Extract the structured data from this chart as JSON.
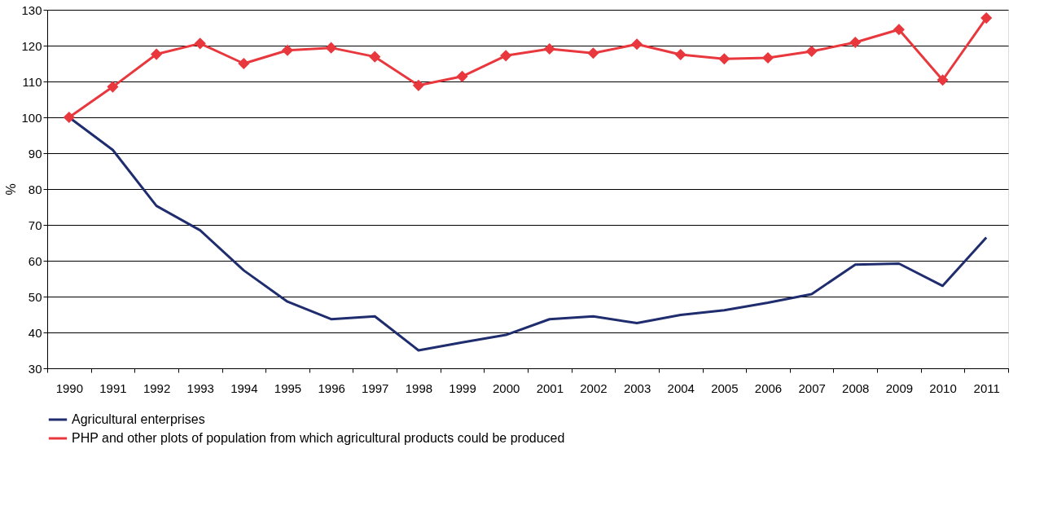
{
  "chart_data": {
    "type": "line",
    "ylabel": "%",
    "categories": [
      "1990",
      "1991",
      "1992",
      "1993",
      "1994",
      "1995",
      "1996",
      "1997",
      "1998",
      "1999",
      "2000",
      "2001",
      "2002",
      "2003",
      "2004",
      "2005",
      "2006",
      "2007",
      "2008",
      "2009",
      "2010",
      "2011"
    ],
    "series": [
      {
        "name": "Agricultural enterprises",
        "color": "#1f2d6e",
        "marker": "none",
        "values": [
          100,
          90.9,
          75.3,
          68.5,
          57.3,
          48.6,
          43.7,
          44.5,
          35.0,
          37.2,
          39.3,
          43.7,
          44.5,
          42.6,
          44.9,
          46.2,
          48.3,
          50.7,
          58.9,
          59.2,
          53.0,
          66.5
        ]
      },
      {
        "name": "PHP and other plots of population from which agricultural products could be produced",
        "color": "#e8383d",
        "marker": "diamond",
        "values": [
          100,
          108.5,
          117.6,
          120.6,
          115.0,
          118.7,
          119.4,
          116.9,
          108.9,
          111.4,
          117.2,
          119.1,
          117.9,
          120.4,
          117.5,
          116.3,
          116.6,
          118.4,
          120.9,
          124.5,
          110.4,
          127.7
        ]
      }
    ],
    "ylim": [
      30,
      130
    ],
    "yticks": [
      30,
      40,
      50,
      60,
      70,
      80,
      90,
      100,
      110,
      120,
      130
    ],
    "grid": "y",
    "legend": "bottom",
    "line_style": "solid"
  }
}
